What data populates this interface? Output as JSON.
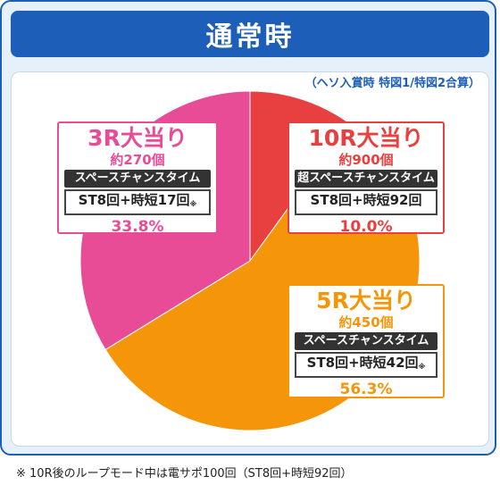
{
  "header_title": "通常時",
  "subnote": "（ヘソ入賞時 特図1/特図2合算）",
  "footer_note": "※ 10R後のループモード中は電サポ100回（ST8回+時短92回）",
  "chart_data": {
    "type": "pie",
    "title": "通常時",
    "start_angle_deg": 0,
    "slices": [
      {
        "key": "r10",
        "label": "10R大当り",
        "payout": "約900個",
        "mode": "超スペースチャンスタイム",
        "st": "ST8回+時短92回",
        "st_note": "",
        "percent_label": "10.0%",
        "value": 10.0,
        "color": "#e84040"
      },
      {
        "key": "r5",
        "label": "5R大当り",
        "payout": "約450個",
        "mode": "スペースチャンスタイム",
        "st": "ST8回+時短42回",
        "st_note": "※",
        "percent_label": "56.3%",
        "value": 56.3,
        "color": "#f5960a"
      },
      {
        "key": "r3",
        "label": "3R大当り",
        "payout": "約270個",
        "mode": "スペースチャンスタイム",
        "st": "ST8回+時短17回",
        "st_note": "※",
        "percent_label": "33.8%",
        "value": 33.8,
        "color": "#e84c97"
      }
    ]
  }
}
